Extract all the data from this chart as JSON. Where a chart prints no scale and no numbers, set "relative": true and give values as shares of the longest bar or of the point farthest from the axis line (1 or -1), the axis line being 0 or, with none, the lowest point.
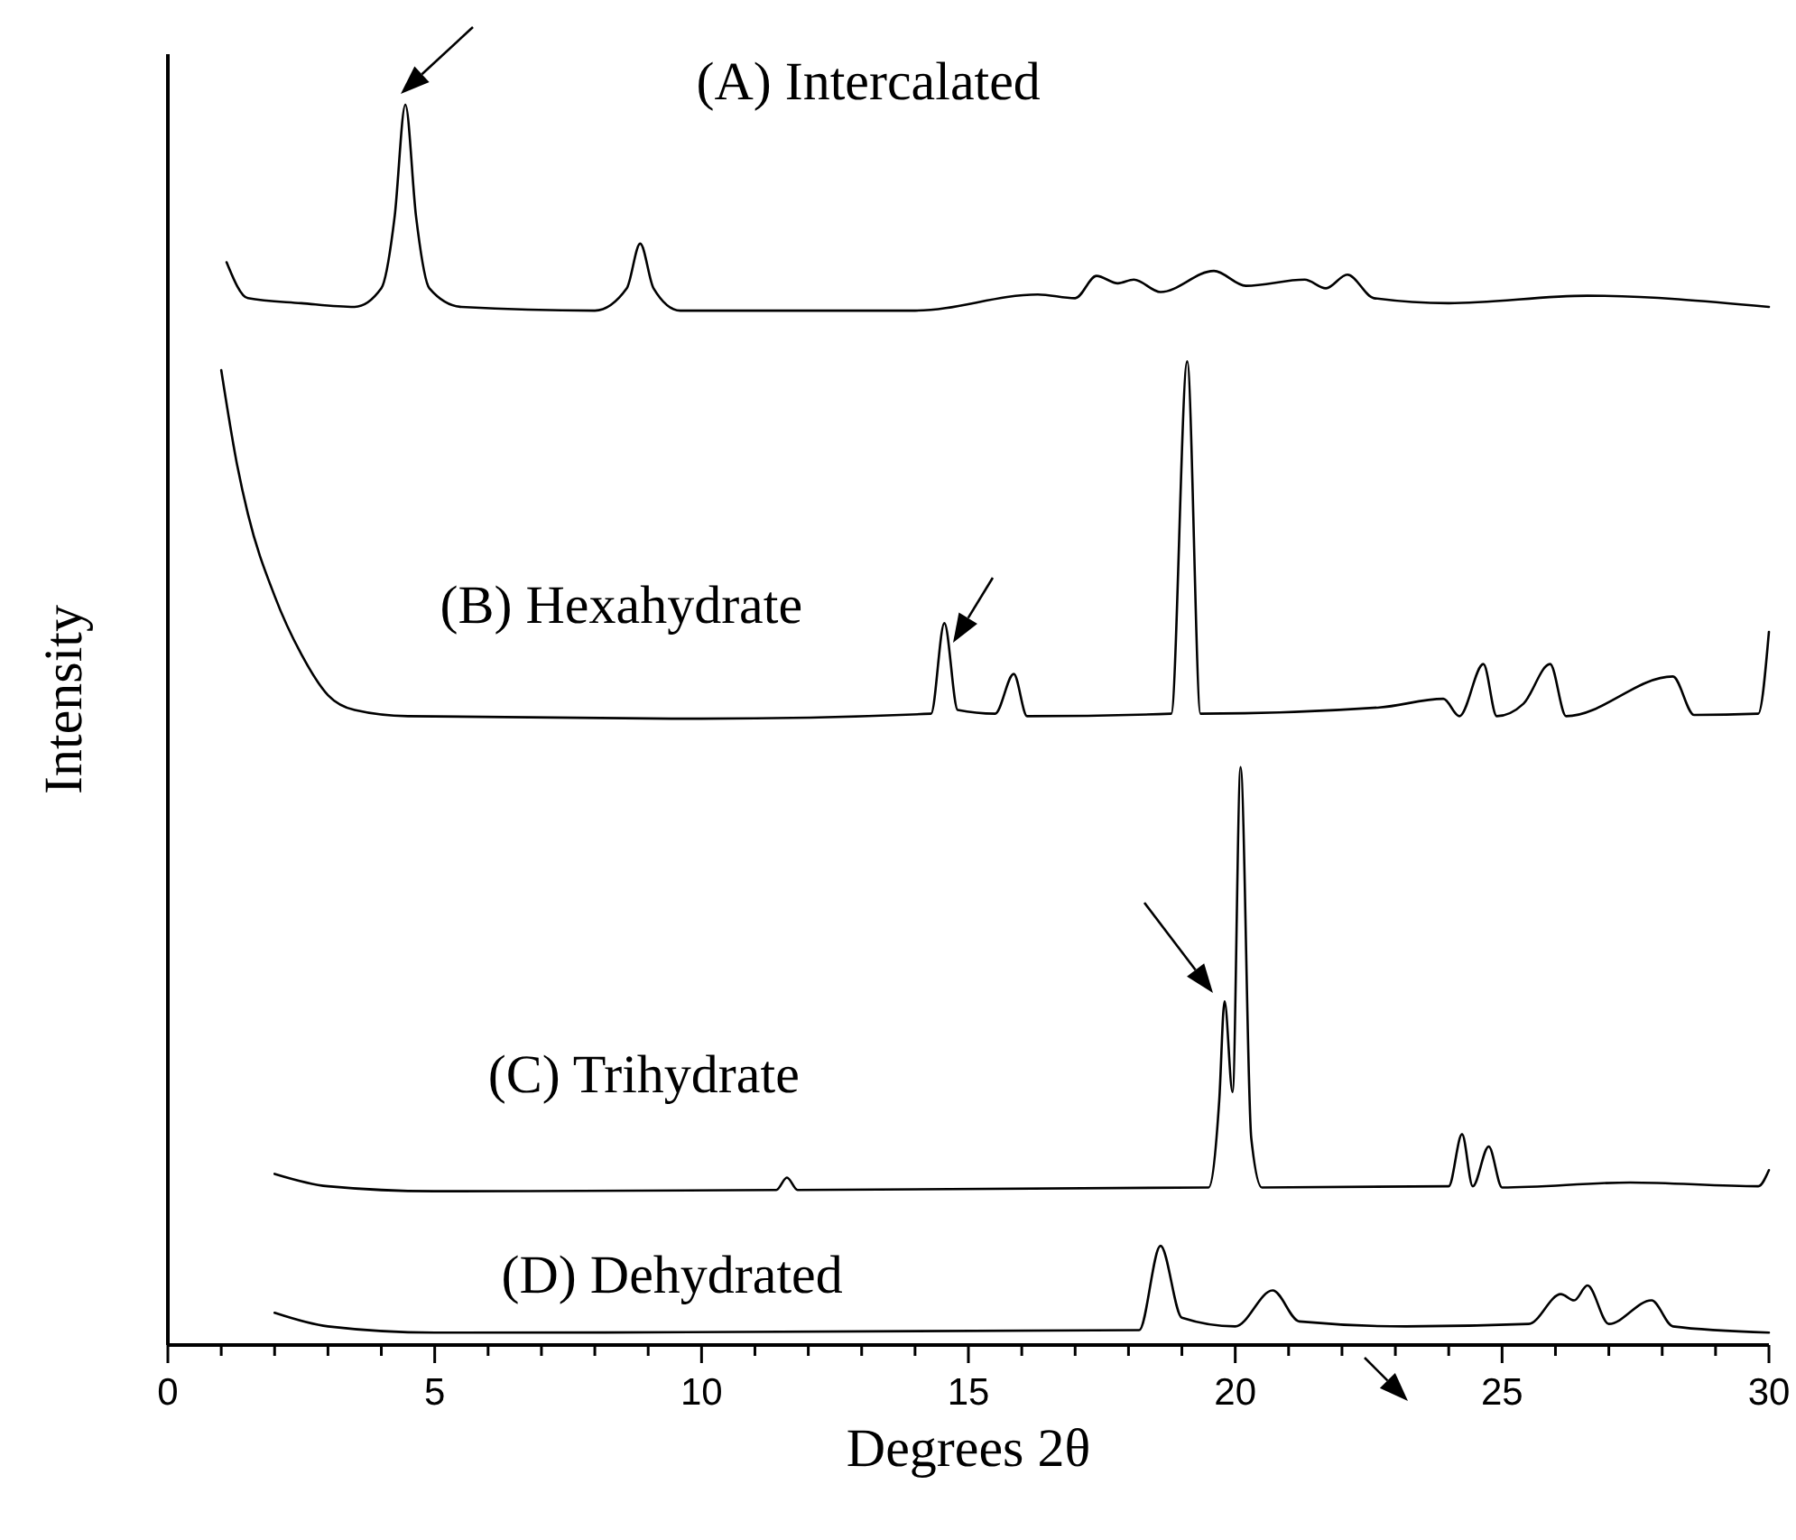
{
  "chart_data": {
    "type": "line",
    "relative": true,
    "xlabel": "Degrees 2θ",
    "ylabel": "Intensity",
    "xlim": [
      0,
      30
    ],
    "xticks": [
      0,
      {
        "value": 1,
        "label": null
      },
      {
        "value": 2,
        "label": null
      },
      {
        "value": 3,
        "label": null
      },
      {
        "value": 4,
        "label": null
      },
      5,
      {
        "value": 6,
        "label": null
      },
      {
        "value": 7,
        "label": null
      },
      {
        "value": 8,
        "label": null
      },
      {
        "value": 9,
        "label": null
      },
      10,
      {
        "value": 11,
        "label": null
      },
      {
        "value": 12,
        "label": null
      },
      {
        "value": 13,
        "label": null
      },
      {
        "value": 14,
        "label": null
      },
      15,
      {
        "value": 16,
        "label": null
      },
      {
        "value": 17,
        "label": null
      },
      {
        "value": 18,
        "label": null
      },
      {
        "value": 19,
        "label": null
      },
      20,
      {
        "value": 21,
        "label": null
      },
      {
        "value": 22,
        "label": null
      },
      {
        "value": 23,
        "label": null
      },
      {
        "value": 24,
        "label": null
      },
      25,
      {
        "value": 26,
        "label": null
      },
      {
        "value": 27,
        "label": null
      },
      {
        "value": 28,
        "label": null
      },
      {
        "value": 29,
        "label": null
      },
      30
    ],
    "series": [
      {
        "name": "(A) Intercalated",
        "color": "#000000",
        "x": [
          1.1,
          1.5,
          2.5,
          3.5,
          4.0,
          4.25,
          4.45,
          4.65,
          4.9,
          5.5,
          8.0,
          8.6,
          8.85,
          9.1,
          9.6,
          14,
          16.3,
          17,
          17.4,
          17.8,
          18.1,
          18.6,
          19.6,
          20.2,
          21.3,
          21.7,
          22.1,
          22.6,
          24,
          26.6,
          30
        ],
        "values": [
          0.873,
          0.844,
          0.84,
          0.837,
          0.852,
          0.91,
          1.0,
          0.91,
          0.852,
          0.837,
          0.834,
          0.852,
          0.888,
          0.852,
          0.834,
          0.834,
          0.847,
          0.844,
          0.862,
          0.856,
          0.859,
          0.849,
          0.866,
          0.854,
          0.859,
          0.852,
          0.863,
          0.844,
          0.84,
          0.846,
          0.837
        ]
      },
      {
        "name": "(B) Hexahydrate",
        "color": "#000000",
        "x": [
          1.0,
          1.3,
          1.5,
          2.0,
          2.5,
          3,
          3.5,
          4.5,
          10,
          14.3,
          14.55,
          14.8,
          15.5,
          15.85,
          16.1,
          18.8,
          19.1,
          19.35,
          22.7,
          23.9,
          24.2,
          24.65,
          24.9,
          25.4,
          25.9,
          26.2,
          28.2,
          28.6,
          29.8,
          30
        ],
        "values": [
          0.786,
          0.709,
          0.67,
          0.604,
          0.557,
          0.524,
          0.512,
          0.507,
          0.505,
          0.509,
          0.582,
          0.512,
          0.509,
          0.541,
          0.507,
          0.509,
          0.793,
          0.509,
          0.514,
          0.521,
          0.507,
          0.549,
          0.507,
          0.517,
          0.549,
          0.507,
          0.539,
          0.508,
          0.509,
          0.575
        ]
      },
      {
        "name": "(C) Trihydrate",
        "color": "#000000",
        "x": [
          2.0,
          3,
          5,
          11.4,
          11.6,
          11.8,
          19.5,
          19.7,
          19.8,
          19.95,
          20.1,
          20.3,
          20.5,
          24.0,
          24.25,
          24.45,
          24.75,
          25,
          27.4,
          29.8,
          30
        ],
        "values": [
          0.138,
          0.128,
          0.124,
          0.125,
          0.135,
          0.125,
          0.127,
          0.197,
          0.277,
          0.204,
          0.466,
          0.167,
          0.127,
          0.128,
          0.17,
          0.128,
          0.16,
          0.127,
          0.131,
          0.128,
          0.141
        ]
      },
      {
        "name": "(D) Dehydrated",
        "color": "#000000",
        "x": [
          2,
          3,
          5,
          18.2,
          18.6,
          19,
          20,
          20.7,
          21.2,
          23.2,
          25.5,
          26.1,
          26.35,
          26.6,
          27,
          27.8,
          28.2,
          30
        ],
        "values": [
          0.026,
          0.015,
          0.01,
          0.012,
          0.08,
          0.022,
          0.015,
          0.044,
          0.019,
          0.015,
          0.017,
          0.041,
          0.036,
          0.048,
          0.017,
          0.036,
          0.015,
          0.01
        ]
      }
    ]
  }
}
